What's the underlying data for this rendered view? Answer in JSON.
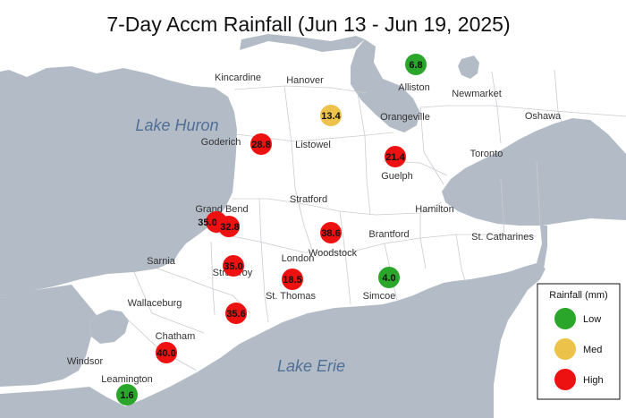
{
  "title": "7-Day Accm Rainfall (Jun 13 - Jun 19, 2025)",
  "colors": {
    "water": "#b3bcc6",
    "land": "#ffffff",
    "border": "#c9ccd0",
    "low": "#2aa62a",
    "med": "#edc24a",
    "high": "#ee1111"
  },
  "water_labels": {
    "lake_huron": "Lake Huron",
    "lake_erie": "Lake Erie"
  },
  "places": [
    {
      "id": "kincardine",
      "name": "Kincardine"
    },
    {
      "id": "hanover",
      "name": "Hanover"
    },
    {
      "id": "alliston",
      "name": "Alliston"
    },
    {
      "id": "newmarket",
      "name": "Newmarket"
    },
    {
      "id": "orangeville",
      "name": "Orangeville"
    },
    {
      "id": "oshawa",
      "name": "Oshawa"
    },
    {
      "id": "goderich",
      "name": "Goderich"
    },
    {
      "id": "listowel",
      "name": "Listowel"
    },
    {
      "id": "toronto",
      "name": "Toronto"
    },
    {
      "id": "guelph",
      "name": "Guelph"
    },
    {
      "id": "grand-bend",
      "name": "Grand Bend"
    },
    {
      "id": "stratford",
      "name": "Stratford"
    },
    {
      "id": "hamilton",
      "name": "Hamilton"
    },
    {
      "id": "brantford",
      "name": "Brantford"
    },
    {
      "id": "st-catharines",
      "name": "St. Catharines"
    },
    {
      "id": "woodstock",
      "name": "Woodstock"
    },
    {
      "id": "london",
      "name": "London"
    },
    {
      "id": "sarnia",
      "name": "Sarnia"
    },
    {
      "id": "strathroy",
      "name": "Strathroy"
    },
    {
      "id": "st-thomas",
      "name": "St. Thomas"
    },
    {
      "id": "simcoe",
      "name": "Simcoe"
    },
    {
      "id": "wallaceburg",
      "name": "Wallaceburg"
    },
    {
      "id": "chatham",
      "name": "Chatham"
    },
    {
      "id": "windsor",
      "name": "Windsor"
    },
    {
      "id": "leamington",
      "name": "Leamington"
    }
  ],
  "stations": [
    {
      "id": "alliston",
      "value": "6.8",
      "category": "low"
    },
    {
      "id": "orangeville",
      "value": "13.4",
      "category": "med"
    },
    {
      "id": "goderich",
      "value": "28.8",
      "category": "high"
    },
    {
      "id": "guelph",
      "value": "21.4",
      "category": "high"
    },
    {
      "id": "grand-bend-a",
      "value": "35.0",
      "category": "high"
    },
    {
      "id": "grand-bend-b",
      "value": "32.8",
      "category": "high"
    },
    {
      "id": "woodstock",
      "value": "38.6",
      "category": "high"
    },
    {
      "id": "strathroy",
      "value": "35.0",
      "category": "high"
    },
    {
      "id": "st-thomas",
      "value": "18.5",
      "category": "high"
    },
    {
      "id": "simcoe",
      "value": "4.0",
      "category": "low"
    },
    {
      "id": "ridgetown",
      "value": "35.6",
      "category": "high"
    },
    {
      "id": "chatham",
      "value": "40.0",
      "category": "high"
    },
    {
      "id": "leamington",
      "value": "1.6",
      "category": "low"
    }
  ],
  "legend": {
    "title": "Rainfall (mm)",
    "items": [
      {
        "category": "low",
        "label": "Low"
      },
      {
        "category": "med",
        "label": "Med"
      },
      {
        "category": "high",
        "label": "High"
      }
    ]
  }
}
